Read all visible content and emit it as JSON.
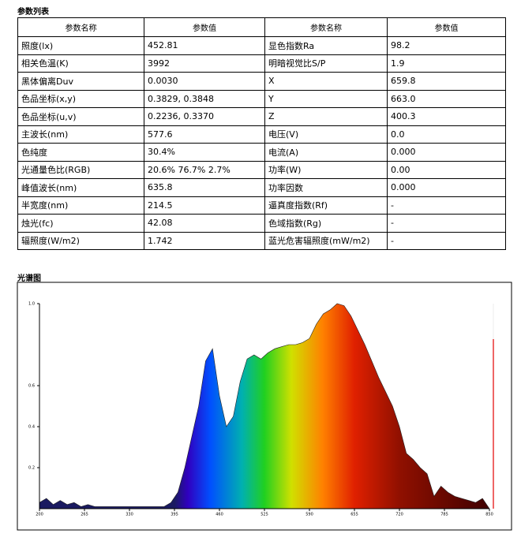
{
  "table": {
    "title": "参数列表",
    "header": [
      "参数名称",
      "参数值",
      "参数名称",
      "参数值"
    ],
    "rows": [
      [
        "照度(lx)",
        "452.81",
        "显色指数Ra",
        "98.2"
      ],
      [
        "相关色温(K)",
        "3992",
        "明暗视觉比S/P",
        "1.9"
      ],
      [
        "黑体偏离Duv",
        "0.0030",
        "X",
        "659.8"
      ],
      [
        "色品坐标(x,y)",
        "0.3829, 0.3848",
        "Y",
        "663.0"
      ],
      [
        "色品坐标(u,v)",
        "0.2236, 0.3370",
        "Z",
        "400.3"
      ],
      [
        "主波长(nm)",
        "577.6",
        "电压(V)",
        "0.0"
      ],
      [
        "色纯度",
        "30.4%",
        "电流(A)",
        "0.000"
      ],
      [
        "光通量色比(RGB)",
        "20.6% 76.7% 2.7%",
        "功率(W)",
        "0.00"
      ],
      [
        "峰值波长(nm)",
        "635.8",
        "功率因数",
        "0.000"
      ],
      [
        "半宽度(nm)",
        "214.5",
        "逼真度指数(Rf)",
        "-"
      ],
      [
        "烛光(fc)",
        "42.08",
        "色域指数(Rg)",
        "-"
      ],
      [
        "辐照度(W/m2)",
        "1.742",
        "蓝光危害辐照度(mW/m2)",
        "-"
      ]
    ]
  },
  "chart_data": {
    "type": "area",
    "title": "光谱图",
    "x": [
      200,
      210,
      220,
      230,
      240,
      250,
      260,
      270,
      280,
      290,
      300,
      310,
      320,
      330,
      340,
      350,
      360,
      370,
      380,
      390,
      400,
      410,
      420,
      430,
      440,
      450,
      460,
      470,
      480,
      490,
      500,
      510,
      520,
      530,
      540,
      550,
      560,
      570,
      580,
      590,
      600,
      610,
      620,
      630,
      640,
      650,
      660,
      670,
      680,
      690,
      700,
      710,
      720,
      730,
      740,
      750,
      760,
      770,
      780,
      790,
      800,
      810,
      820,
      830,
      840,
      850
    ],
    "values": [
      0.03,
      0.05,
      0.02,
      0.04,
      0.02,
      0.03,
      0.01,
      0.02,
      0.01,
      0.01,
      0.01,
      0.01,
      0.01,
      0.01,
      0.01,
      0.01,
      0.01,
      0.01,
      0.01,
      0.03,
      0.08,
      0.2,
      0.35,
      0.5,
      0.72,
      0.78,
      0.55,
      0.4,
      0.45,
      0.62,
      0.73,
      0.75,
      0.73,
      0.76,
      0.78,
      0.79,
      0.8,
      0.8,
      0.81,
      0.83,
      0.9,
      0.95,
      0.97,
      1.0,
      0.99,
      0.94,
      0.87,
      0.8,
      0.72,
      0.64,
      0.57,
      0.5,
      0.4,
      0.27,
      0.24,
      0.2,
      0.17,
      0.06,
      0.11,
      0.08,
      0.06,
      0.05,
      0.04,
      0.03,
      0.05,
      0.0
    ],
    "xlim": [
      200,
      850
    ],
    "xticks": [
      200,
      265,
      330,
      395,
      460,
      525,
      590,
      655,
      720,
      785,
      850
    ],
    "ylim": [
      0,
      1
    ],
    "yticks": [
      0.2,
      0.4,
      0.6,
      {
        "value": 1,
        "label": "1.0"
      }
    ]
  }
}
